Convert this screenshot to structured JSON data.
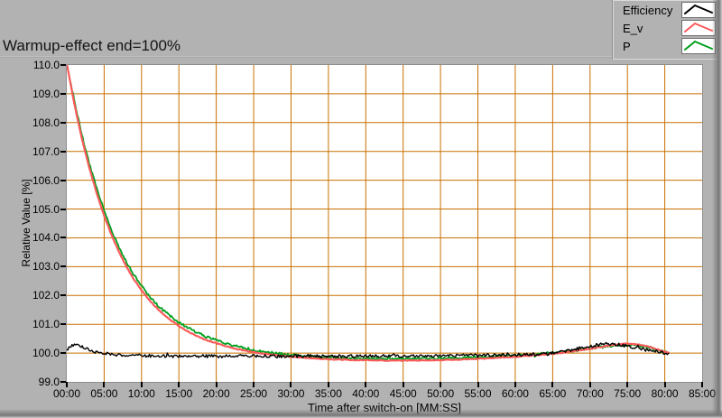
{
  "title": "Warmup-effect end=100%",
  "legend": {
    "items": [
      {
        "label": "Efficiency",
        "color": "#000000"
      },
      {
        "label": "E_v",
        "color": "#fb5a5a"
      },
      {
        "label": "P",
        "color": "#00a01e"
      }
    ]
  },
  "colors": {
    "background": "#b2b2b2",
    "plot_background": "#ffffff",
    "grid": "#c87000",
    "tick": "#000000"
  },
  "chart_data": {
    "type": "line",
    "title": "Warmup-effect end=100%",
    "xlabel": "Time after switch-on [MM:SS]",
    "ylabel": "Relative Value [%]",
    "xlim_minutes": [
      0,
      85
    ],
    "ylim": [
      99.0,
      110.0
    ],
    "grid": true,
    "grid_color": "#c87000",
    "legend_position": "top-right",
    "x_ticks": [
      {
        "t": 0,
        "label": "00:00"
      },
      {
        "t": 5,
        "label": "05:00"
      },
      {
        "t": 10,
        "label": "10:00"
      },
      {
        "t": 15,
        "label": "15:00"
      },
      {
        "t": 20,
        "label": "20:00"
      },
      {
        "t": 25,
        "label": "25:00"
      },
      {
        "t": 30,
        "label": "30:00"
      },
      {
        "t": 35,
        "label": "35:00"
      },
      {
        "t": 40,
        "label": "40:00"
      },
      {
        "t": 45,
        "label": "45:00"
      },
      {
        "t": 50,
        "label": "50:00"
      },
      {
        "t": 55,
        "label": "55:00"
      },
      {
        "t": 60,
        "label": "60:00"
      },
      {
        "t": 65,
        "label": "65:00"
      },
      {
        "t": 70,
        "label": "70:00"
      },
      {
        "t": 75,
        "label": "75:00"
      },
      {
        "t": 80,
        "label": "80:00"
      },
      {
        "t": 85,
        "label": "85:00"
      }
    ],
    "y_ticks": [
      {
        "v": 99,
        "label": "99.0"
      },
      {
        "v": 100,
        "label": "100.0"
      },
      {
        "v": 101,
        "label": "101.0"
      },
      {
        "v": 102,
        "label": "102.0"
      },
      {
        "v": 103,
        "label": "103.0"
      },
      {
        "v": 104,
        "label": "104.0"
      },
      {
        "v": 105,
        "label": "105.0"
      },
      {
        "v": 106,
        "label": "106.0"
      },
      {
        "v": 107,
        "label": "107.0"
      },
      {
        "v": 108,
        "label": "108.0"
      },
      {
        "v": 109,
        "label": "109.0"
      },
      {
        "v": 110,
        "label": "110.0"
      }
    ],
    "series": [
      {
        "name": "P",
        "color": "#00a01e",
        "width": 1.8,
        "noise": 0.045,
        "points": [
          [
            0,
            110.0
          ],
          [
            1,
            108.8
          ],
          [
            2,
            107.6
          ],
          [
            3,
            106.6
          ],
          [
            4,
            105.75
          ],
          [
            5,
            104.95
          ],
          [
            6,
            104.25
          ],
          [
            7,
            103.65
          ],
          [
            8,
            103.15
          ],
          [
            9,
            102.7
          ],
          [
            10,
            102.32
          ],
          [
            11,
            102.0
          ],
          [
            12,
            101.7
          ],
          [
            13,
            101.46
          ],
          [
            14,
            101.25
          ],
          [
            15,
            101.06
          ],
          [
            16,
            100.9
          ],
          [
            17,
            100.76
          ],
          [
            18,
            100.64
          ],
          [
            19,
            100.53
          ],
          [
            20,
            100.44
          ],
          [
            21,
            100.36
          ],
          [
            22,
            100.28
          ],
          [
            23,
            100.22
          ],
          [
            24,
            100.16
          ],
          [
            25,
            100.11
          ],
          [
            26,
            100.06
          ],
          [
            27,
            100.02
          ],
          [
            28,
            99.99
          ],
          [
            29,
            99.96
          ],
          [
            30,
            99.93
          ],
          [
            32,
            99.89
          ],
          [
            34,
            99.86
          ],
          [
            36,
            99.84
          ],
          [
            38,
            99.82
          ],
          [
            40,
            99.81
          ],
          [
            43,
            99.8
          ],
          [
            46,
            99.8
          ],
          [
            49,
            99.81
          ],
          [
            52,
            99.83
          ],
          [
            55,
            99.85
          ],
          [
            58,
            99.89
          ],
          [
            60,
            99.92
          ],
          [
            62,
            99.95
          ],
          [
            64,
            99.99
          ],
          [
            66,
            100.03
          ],
          [
            68,
            100.09
          ],
          [
            70,
            100.16
          ],
          [
            72,
            100.23
          ],
          [
            73,
            100.26
          ],
          [
            74,
            100.28
          ],
          [
            75,
            100.29
          ],
          [
            76,
            100.28
          ],
          [
            77,
            100.24
          ],
          [
            78,
            100.19
          ],
          [
            79,
            100.11
          ],
          [
            80,
            100.03
          ],
          [
            80.5,
            100.0
          ]
        ]
      },
      {
        "name": "E_v",
        "color": "#fb5a5a",
        "width": 2.2,
        "noise": 0.012,
        "points": [
          [
            0,
            110.05
          ],
          [
            1,
            108.67
          ],
          [
            2,
            107.47
          ],
          [
            3,
            106.44
          ],
          [
            4,
            105.55
          ],
          [
            5,
            104.77
          ],
          [
            6,
            104.09
          ],
          [
            7,
            103.5
          ],
          [
            8,
            102.99
          ],
          [
            9,
            102.55
          ],
          [
            10,
            102.18
          ],
          [
            11,
            101.85
          ],
          [
            12,
            101.57
          ],
          [
            13,
            101.33
          ],
          [
            14,
            101.12
          ],
          [
            15,
            100.94
          ],
          [
            16,
            100.78
          ],
          [
            17,
            100.64
          ],
          [
            18,
            100.53
          ],
          [
            19,
            100.42
          ],
          [
            20,
            100.34
          ],
          [
            21,
            100.26
          ],
          [
            22,
            100.19
          ],
          [
            23,
            100.13
          ],
          [
            24,
            100.08
          ],
          [
            25,
            100.03
          ],
          [
            26,
            99.99
          ],
          [
            27,
            99.96
          ],
          [
            28,
            99.93
          ],
          [
            29,
            99.9
          ],
          [
            30,
            99.87
          ],
          [
            32,
            99.83
          ],
          [
            34,
            99.8
          ],
          [
            36,
            99.78
          ],
          [
            38,
            99.76
          ],
          [
            40,
            99.75
          ],
          [
            43,
            99.74
          ],
          [
            46,
            99.74
          ],
          [
            49,
            99.75
          ],
          [
            52,
            99.77
          ],
          [
            55,
            99.8
          ],
          [
            58,
            99.84
          ],
          [
            60,
            99.87
          ],
          [
            62,
            99.91
          ],
          [
            64,
            99.95
          ],
          [
            66,
            100.0
          ],
          [
            68,
            100.07
          ],
          [
            70,
            100.15
          ],
          [
            72,
            100.24
          ],
          [
            73,
            100.28
          ],
          [
            74,
            100.31
          ],
          [
            75,
            100.33
          ],
          [
            76,
            100.31
          ],
          [
            77,
            100.27
          ],
          [
            78,
            100.21
          ],
          [
            79,
            100.13
          ],
          [
            80,
            100.05
          ],
          [
            80.5,
            100.02
          ]
        ]
      },
      {
        "name": "Efficiency",
        "color": "#000000",
        "width": 1.4,
        "noise": 0.055,
        "points": [
          [
            0,
            100.12
          ],
          [
            0.7,
            100.25
          ],
          [
            1.5,
            100.28
          ],
          [
            2.5,
            100.17
          ],
          [
            3.5,
            100.07
          ],
          [
            4.5,
            100.0
          ],
          [
            6,
            99.96
          ],
          [
            8,
            99.93
          ],
          [
            10,
            99.91
          ],
          [
            13,
            99.89
          ],
          [
            16,
            99.9
          ],
          [
            20,
            99.89
          ],
          [
            24,
            99.9
          ],
          [
            28,
            99.89
          ],
          [
            32,
            99.9
          ],
          [
            36,
            99.89
          ],
          [
            40,
            99.9
          ],
          [
            44,
            99.9
          ],
          [
            48,
            99.91
          ],
          [
            52,
            99.92
          ],
          [
            56,
            99.93
          ],
          [
            60,
            99.94
          ],
          [
            62,
            99.95
          ],
          [
            64,
            99.97
          ],
          [
            65,
            100.0
          ],
          [
            66,
            100.04
          ],
          [
            67,
            100.08
          ],
          [
            68,
            100.13
          ],
          [
            69,
            100.19
          ],
          [
            70,
            100.24
          ],
          [
            71,
            100.28
          ],
          [
            72,
            100.31
          ],
          [
            73,
            100.32
          ],
          [
            74,
            100.29
          ],
          [
            75,
            100.24
          ],
          [
            76,
            100.18
          ],
          [
            77,
            100.13
          ],
          [
            78,
            100.09
          ],
          [
            79,
            100.04
          ],
          [
            80,
            100.0
          ],
          [
            80.5,
            99.99
          ]
        ]
      }
    ]
  }
}
